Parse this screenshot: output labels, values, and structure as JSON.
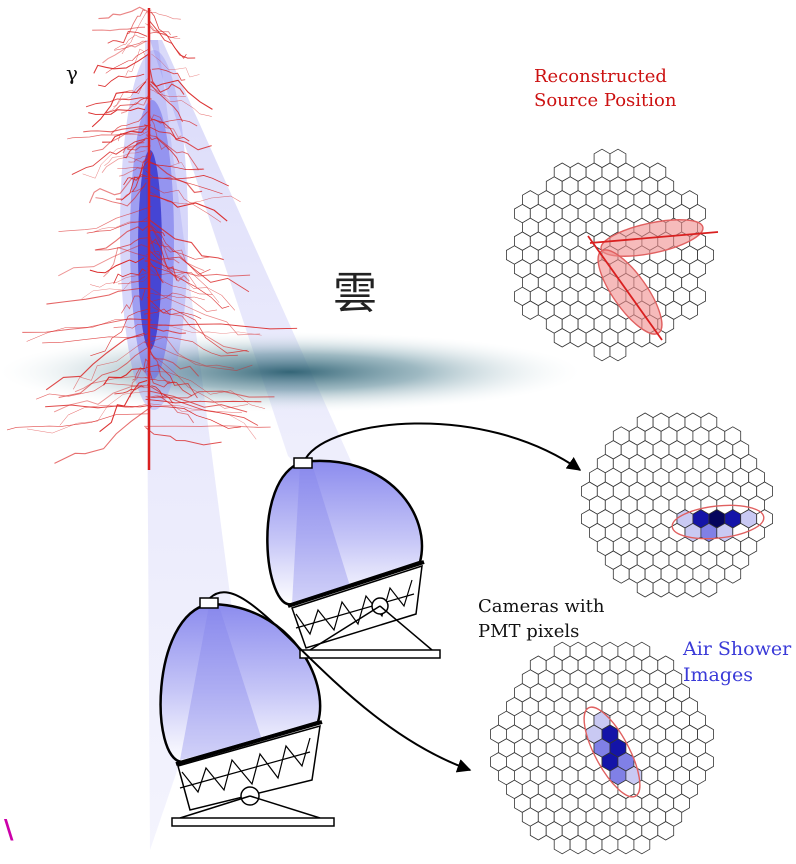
{
  "primary_label": "γ",
  "cloud_label": "雲",
  "reconstructed_label": [
    "Reconstructed",
    "Source Position"
  ],
  "cameras_label": [
    "Cameras with",
    "PMT pixels"
  ],
  "images_label": [
    "Air Shower",
    "Images"
  ],
  "corner_mark": "\\",
  "colors": {
    "track": "#d92020",
    "cone": "#6a6ae8",
    "core": "#2a2ad8",
    "cloud": "#3d6d7c",
    "label_red": "#cc1111",
    "label_blue": "#3a3ad8",
    "ellipse": "#e06060",
    "ellipse_fill": "#f08e8e",
    "pix_light": "#c9c9f3",
    "pix_mid": "#8080e6",
    "pix_dark": "#1414a8",
    "pix_core": "#04045c",
    "mark": "#cc00aa"
  }
}
